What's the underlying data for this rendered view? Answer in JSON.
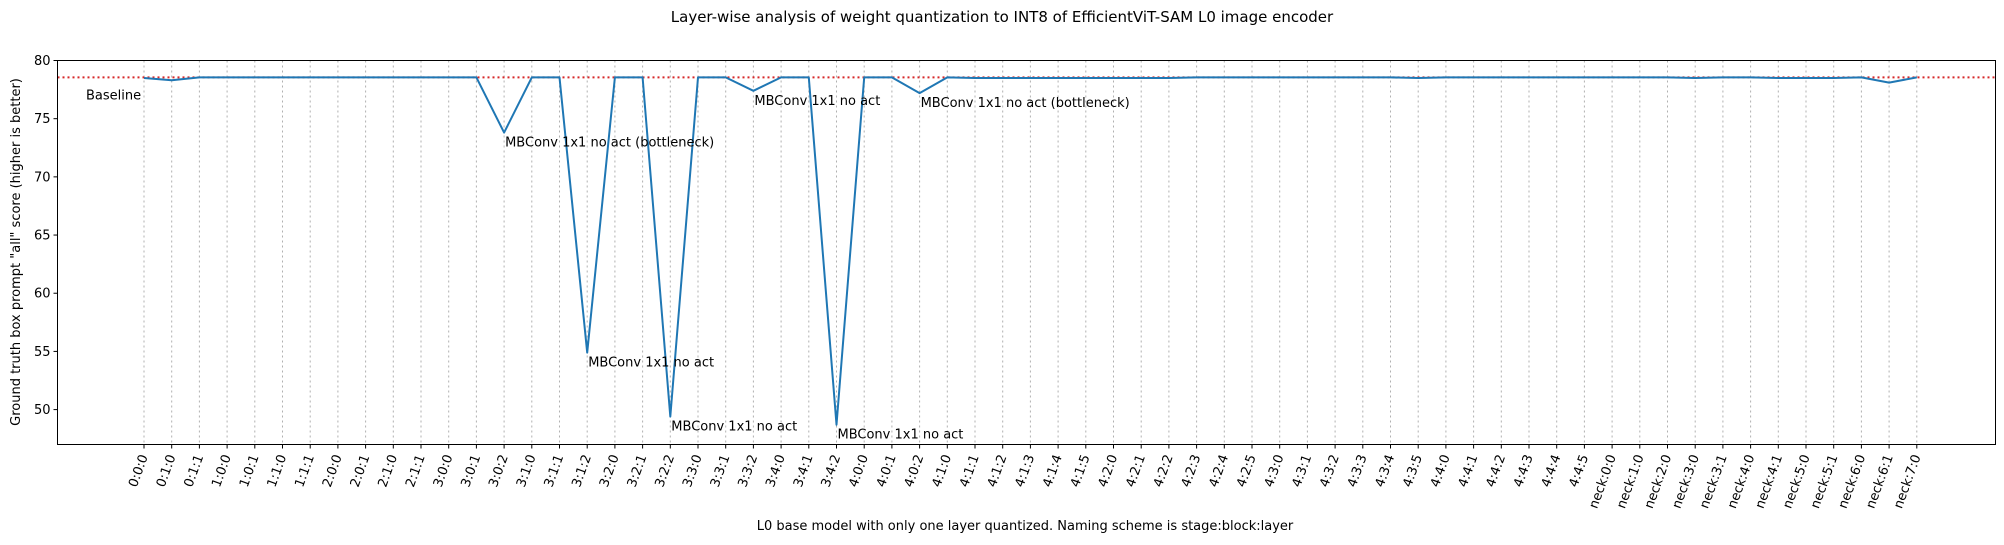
{
  "chart_data": {
    "type": "line",
    "title": "Layer-wise analysis of weight quantization to INT8 of EfficientViT-SAM L0 image encoder",
    "xlabel": "L0 base model with only one layer quantized. Naming scheme is stage:block:layer",
    "ylabel": "Ground truth box prompt \"all\" score (higher is better)",
    "ylim": [
      47,
      80
    ],
    "yticks": [
      50,
      55,
      60,
      65,
      70,
      75,
      80
    ],
    "grid": "vertical dotted",
    "categories": [
      "0:0:0",
      "0:1:0",
      "0:1:1",
      "1:0:0",
      "1:0:1",
      "1:1:0",
      "1:1:1",
      "2:0:0",
      "2:0:1",
      "2:1:0",
      "2:1:1",
      "3:0:0",
      "3:0:1",
      "3:0:2",
      "3:1:0",
      "3:1:1",
      "3:1:2",
      "3:2:0",
      "3:2:1",
      "3:2:2",
      "3:3:0",
      "3:3:1",
      "3:3:2",
      "3:4:0",
      "3:4:1",
      "3:4:2",
      "4:0:0",
      "4:0:1",
      "4:0:2",
      "4:1:0",
      "4:1:1",
      "4:1:2",
      "4:1:3",
      "4:1:4",
      "4:1:5",
      "4:2:0",
      "4:2:1",
      "4:2:2",
      "4:2:3",
      "4:2:4",
      "4:2:5",
      "4:3:0",
      "4:3:1",
      "4:3:2",
      "4:3:3",
      "4:3:4",
      "4:3:5",
      "4:4:0",
      "4:4:1",
      "4:4:2",
      "4:4:3",
      "4:4:4",
      "4:4:5",
      "neck:0:0",
      "neck:1:0",
      "neck:2:0",
      "neck:3:0",
      "neck:3:1",
      "neck:4:0",
      "neck:4:1",
      "neck:5:0",
      "neck:5:1",
      "neck:6:0",
      "neck:6:1",
      "neck:7:0"
    ],
    "series": [
      {
        "values": [
          78.5,
          78.3,
          78.55,
          78.55,
          78.55,
          78.55,
          78.55,
          78.55,
          78.55,
          78.55,
          78.55,
          78.55,
          78.55,
          73.8,
          78.55,
          78.55,
          54.9,
          78.55,
          78.55,
          49.4,
          78.55,
          78.55,
          77.4,
          78.55,
          78.55,
          48.7,
          78.55,
          78.55,
          77.2,
          78.55,
          78.5,
          78.5,
          78.5,
          78.5,
          78.5,
          78.5,
          78.5,
          78.5,
          78.55,
          78.55,
          78.55,
          78.55,
          78.55,
          78.55,
          78.55,
          78.55,
          78.5,
          78.55,
          78.55,
          78.55,
          78.55,
          78.55,
          78.55,
          78.55,
          78.55,
          78.55,
          78.5,
          78.55,
          78.55,
          78.5,
          78.5,
          78.5,
          78.55,
          78.1,
          78.55
        ],
        "color": "#1f77b4"
      }
    ],
    "baseline": {
      "value": 78.55,
      "label": "Baseline",
      "color": "#d62728"
    },
    "annotations": [
      {
        "index": 13,
        "text": "MBConv 1x1 no act (bottleneck)"
      },
      {
        "index": 16,
        "text": "MBConv 1x1 no act"
      },
      {
        "index": 19,
        "text": "MBConv 1x1 no act"
      },
      {
        "index": 22,
        "text": "MBConv 1x1 no act"
      },
      {
        "index": 25,
        "text": "MBConv 1x1 no act"
      },
      {
        "index": 28,
        "text": "MBConv 1x1 no act (bottleneck)"
      }
    ]
  }
}
